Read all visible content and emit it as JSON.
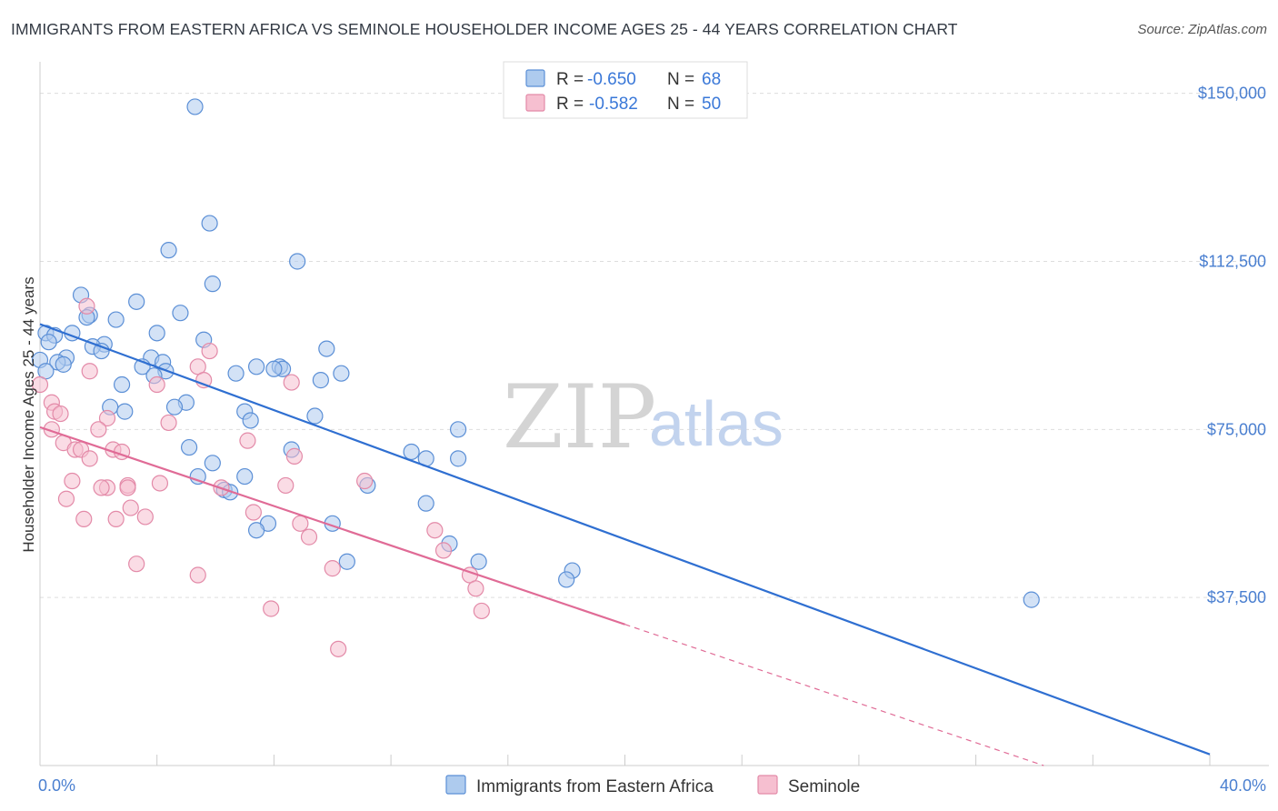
{
  "title": "IMMIGRANTS FROM EASTERN AFRICA VS SEMINOLE HOUSEHOLDER INCOME AGES 25 - 44 YEARS CORRELATION CHART",
  "source": "Source: ZipAtlas.com",
  "watermark": {
    "zip": "ZIP",
    "atlas": "atlas"
  },
  "colors": {
    "blue": "#5b8fd6",
    "blue_fill": "#aecbee",
    "blue_line": "#2f6fd1",
    "pink": "#e38aa8",
    "pink_fill": "#f6bfd0",
    "pink_line": "#e06b96",
    "grid": "#dddddd"
  },
  "legend": {
    "series1": {
      "r_label": "R = ",
      "r_value": "-0.650",
      "n_label": "N = ",
      "n_value": "68"
    },
    "series2": {
      "r_label": "R = ",
      "r_value": "-0.582",
      "n_label": "N = ",
      "n_value": "50"
    }
  },
  "chart_data": {
    "type": "scatter",
    "title": "IMMIGRANTS FROM EASTERN AFRICA VS SEMINOLE HOUSEHOLDER INCOME AGES 25 - 44 YEARS CORRELATION CHART",
    "xlabel": "",
    "ylabel": "Householder Income Ages 25 - 44 years",
    "xlim": [
      0,
      40
    ],
    "ylim": [
      0,
      155000
    ],
    "x_tick_labels": [
      "0.0%",
      "40.0%"
    ],
    "y_ticks": [
      37500,
      75000,
      112500,
      150000
    ],
    "y_tick_labels": [
      "$37,500",
      "$75,000",
      "$112,500",
      "$150,000"
    ],
    "series": [
      {
        "name": "Immigrants from Eastern Africa",
        "trend": {
          "x0": 0,
          "y0": 98500,
          "x1": 40,
          "y1": 2500,
          "solid_to": 40
        },
        "points": [
          [
            5.3,
            147000
          ],
          [
            5.8,
            121000
          ],
          [
            4.4,
            115000
          ],
          [
            8.8,
            112500
          ],
          [
            5.9,
            107500
          ],
          [
            1.4,
            105000
          ],
          [
            3.3,
            103500
          ],
          [
            4.8,
            101000
          ],
          [
            1.7,
            100500
          ],
          [
            1.6,
            100000
          ],
          [
            2.6,
            99500
          ],
          [
            0.2,
            96500
          ],
          [
            0.5,
            96000
          ],
          [
            1.1,
            96500
          ],
          [
            4.0,
            96500
          ],
          [
            5.6,
            95000
          ],
          [
            0.3,
            94500
          ],
          [
            2.2,
            94000
          ],
          [
            1.8,
            93500
          ],
          [
            9.8,
            93000
          ],
          [
            2.1,
            92500
          ],
          [
            3.8,
            91000
          ],
          [
            0.0,
            90500
          ],
          [
            0.9,
            91000
          ],
          [
            0.6,
            90000
          ],
          [
            4.2,
            90000
          ],
          [
            0.8,
            89500
          ],
          [
            3.5,
            89000
          ],
          [
            7.4,
            89000
          ],
          [
            8.2,
            89000
          ],
          [
            8.3,
            88500
          ],
          [
            8.0,
            88500
          ],
          [
            4.3,
            88000
          ],
          [
            3.9,
            87000
          ],
          [
            6.7,
            87500
          ],
          [
            10.3,
            87500
          ],
          [
            9.6,
            86000
          ],
          [
            2.8,
            85000
          ],
          [
            5.0,
            81000
          ],
          [
            2.4,
            80000
          ],
          [
            4.6,
            80000
          ],
          [
            2.9,
            79000
          ],
          [
            7.0,
            79000
          ],
          [
            9.4,
            78000
          ],
          [
            7.2,
            77000
          ],
          [
            14.3,
            75000
          ],
          [
            5.1,
            71000
          ],
          [
            8.6,
            70500
          ],
          [
            12.7,
            70000
          ],
          [
            5.9,
            67500
          ],
          [
            13.2,
            68500
          ],
          [
            14.3,
            68500
          ],
          [
            7.0,
            64500
          ],
          [
            5.4,
            64500
          ],
          [
            11.2,
            62500
          ],
          [
            6.3,
            61500
          ],
          [
            6.5,
            61000
          ],
          [
            13.2,
            58500
          ],
          [
            7.8,
            54000
          ],
          [
            10.0,
            54000
          ],
          [
            7.4,
            52500
          ],
          [
            14.0,
            49500
          ],
          [
            10.5,
            45500
          ],
          [
            15.0,
            45500
          ],
          [
            18.2,
            43500
          ],
          [
            18.0,
            41500
          ],
          [
            33.9,
            37000
          ],
          [
            0.2,
            88000
          ]
        ]
      },
      {
        "name": "Seminole",
        "trend": {
          "x0": 0,
          "y0": 75500,
          "x1": 40,
          "y1": -12500,
          "solid_to": 20
        },
        "points": [
          [
            1.6,
            102500
          ],
          [
            5.8,
            92500
          ],
          [
            5.4,
            89000
          ],
          [
            1.7,
            88000
          ],
          [
            5.6,
            86000
          ],
          [
            8.6,
            85500
          ],
          [
            4.0,
            85000
          ],
          [
            0.0,
            85000
          ],
          [
            0.4,
            81000
          ],
          [
            0.5,
            79000
          ],
          [
            0.7,
            78500
          ],
          [
            2.3,
            77500
          ],
          [
            4.4,
            76500
          ],
          [
            0.4,
            75000
          ],
          [
            2.0,
            75000
          ],
          [
            0.8,
            72000
          ],
          [
            7.1,
            72500
          ],
          [
            1.2,
            70500
          ],
          [
            1.4,
            70500
          ],
          [
            2.5,
            70500
          ],
          [
            2.8,
            70000
          ],
          [
            8.7,
            69000
          ],
          [
            1.7,
            68500
          ],
          [
            1.1,
            63500
          ],
          [
            4.1,
            63000
          ],
          [
            11.1,
            63500
          ],
          [
            8.4,
            62500
          ],
          [
            3.0,
            62500
          ],
          [
            3.0,
            62000
          ],
          [
            2.3,
            62000
          ],
          [
            2.1,
            62000
          ],
          [
            6.2,
            62000
          ],
          [
            0.9,
            59500
          ],
          [
            3.1,
            57500
          ],
          [
            7.3,
            56500
          ],
          [
            1.5,
            55000
          ],
          [
            2.6,
            55000
          ],
          [
            3.6,
            55500
          ],
          [
            8.9,
            54000
          ],
          [
            13.5,
            52500
          ],
          [
            9.2,
            51000
          ],
          [
            13.8,
            48000
          ],
          [
            3.3,
            45000
          ],
          [
            10.0,
            44000
          ],
          [
            5.4,
            42500
          ],
          [
            14.7,
            42500
          ],
          [
            14.9,
            39500
          ],
          [
            15.1,
            34500
          ],
          [
            7.9,
            35000
          ],
          [
            10.2,
            26000
          ]
        ]
      }
    ]
  },
  "bottom_legend": {
    "series1": "Immigrants from Eastern Africa",
    "series2": "Seminole"
  }
}
